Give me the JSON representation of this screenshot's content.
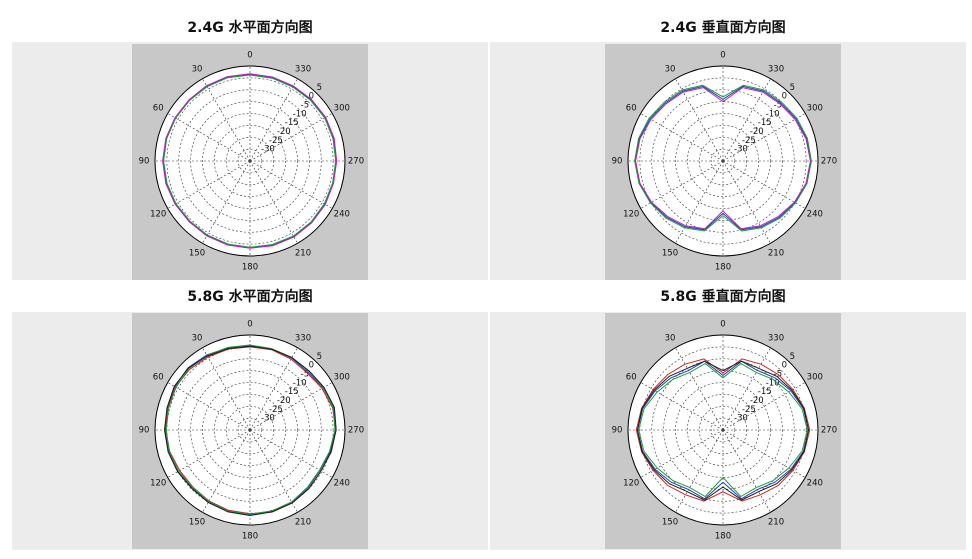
{
  "chart_data": [
    {
      "type": "polar",
      "title": "2.4G 水平面方向图",
      "x": [
        0,
        15,
        30,
        45,
        60,
        75,
        90,
        105,
        120,
        135,
        150,
        165,
        180,
        195,
        210,
        225,
        240,
        255,
        270,
        285,
        300,
        315,
        330,
        345
      ],
      "xticks": [
        0,
        30,
        60,
        90,
        120,
        150,
        180,
        210,
        240,
        270,
        300,
        330
      ],
      "ylim": [
        -35,
        5
      ],
      "yticks": [
        5,
        0,
        -5,
        -10,
        -15,
        -20,
        -25,
        -30
      ],
      "series": [
        {
          "color": "#1f3fbf",
          "values": [
            1.5,
            1.6,
            1.4,
            1.2,
            1.3,
            1.5,
            1.6,
            1.5,
            1.2,
            1.0,
            1.2,
            1.4,
            1.5,
            1.7,
            1.8,
            1.6,
            1.4,
            1.2,
            1.3,
            1.5,
            1.6,
            1.4,
            1.3,
            1.4
          ]
        },
        {
          "color": "#1a9e3a",
          "values": [
            1.2,
            1.3,
            1.1,
            1.0,
            1.1,
            1.3,
            1.4,
            1.2,
            1.0,
            0.8,
            1.0,
            1.2,
            1.3,
            1.4,
            1.5,
            1.3,
            1.1,
            1.0,
            1.1,
            1.2,
            1.3,
            1.1,
            1.0,
            1.1
          ]
        },
        {
          "color": "#c020c0",
          "values": [
            1.7,
            1.8,
            1.6,
            1.4,
            1.5,
            1.7,
            1.8,
            1.7,
            1.4,
            1.2,
            1.4,
            1.6,
            1.7,
            1.9,
            2.0,
            1.8,
            1.6,
            1.4,
            1.5,
            1.7,
            1.8,
            1.6,
            1.5,
            1.6
          ]
        }
      ]
    },
    {
      "type": "polar",
      "title": "2.4G 垂直面方向图",
      "x": [
        0,
        15,
        30,
        45,
        60,
        75,
        90,
        105,
        120,
        135,
        150,
        165,
        180,
        195,
        210,
        225,
        240,
        255,
        270,
        285,
        300,
        315,
        330,
        345
      ],
      "xticks": [
        0,
        30,
        60,
        90,
        120,
        150,
        180,
        210,
        240,
        270,
        300,
        330
      ],
      "ylim": [
        -35,
        5
      ],
      "yticks": [
        5,
        0,
        -5,
        -10,
        -15,
        -20,
        -25,
        -30
      ],
      "series": [
        {
          "color": "#1f3fbf",
          "values": [
            -9,
            -2.5,
            -1,
            -0.5,
            0.5,
            1.5,
            2,
            1.5,
            0,
            -1.5,
            -3,
            -5,
            -13,
            -5,
            -3,
            -1.5,
            0,
            1.5,
            2,
            1.5,
            0.5,
            -0.5,
            -1,
            -2.5
          ]
        },
        {
          "color": "#1a9e3a",
          "values": [
            -8,
            -2,
            -0.5,
            0,
            1,
            1.8,
            2.2,
            1.6,
            0.3,
            -1,
            -2.5,
            -4.5,
            -12,
            -4.5,
            -2.5,
            -1,
            0.3,
            1.6,
            2.2,
            1.8,
            1,
            0,
            -0.5,
            -2
          ]
        },
        {
          "color": "#c020c0",
          "values": [
            -10,
            -3,
            -1.5,
            -1,
            0,
            1.2,
            1.8,
            1.2,
            -0.3,
            -2,
            -3.5,
            -5.5,
            -14,
            -5.5,
            -3.5,
            -2,
            -0.3,
            1.2,
            1.8,
            1.2,
            0,
            -1,
            -1.5,
            -3
          ]
        }
      ]
    },
    {
      "type": "polar",
      "title": "5.8G 水平面方向图",
      "x": [
        0,
        15,
        30,
        45,
        60,
        75,
        90,
        105,
        120,
        135,
        150,
        165,
        180,
        195,
        210,
        225,
        240,
        255,
        270,
        285,
        300,
        315,
        330,
        345
      ],
      "xticks": [
        0,
        30,
        60,
        90,
        120,
        150,
        180,
        210,
        240,
        270,
        300,
        330
      ],
      "ylim": [
        -35,
        5
      ],
      "yticks": [
        5,
        0,
        -5,
        -10,
        -15,
        -20,
        -25,
        -30
      ],
      "series": [
        {
          "color": "#1f3fbf",
          "values": [
            0.5,
            0.8,
            1.5,
            2,
            1.5,
            1,
            0.8,
            0.5,
            0,
            -0.5,
            0,
            0.5,
            0.8,
            0.5,
            0.3,
            -0.5,
            -1,
            0,
            1,
            1.5,
            0.5,
            -0.5,
            0,
            0.3
          ]
        },
        {
          "color": "#d02020",
          "values": [
            0,
            0.3,
            0.5,
            1,
            1.2,
            0.8,
            0.5,
            0,
            -0.8,
            -1,
            -0.5,
            0,
            0.3,
            0.8,
            0.5,
            0,
            -0.5,
            0.5,
            1.2,
            1,
            0,
            -1,
            -0.5,
            0
          ]
        },
        {
          "color": "#1a9e3a",
          "values": [
            0.8,
            1,
            1.2,
            1.5,
            1,
            0.5,
            0.3,
            0.2,
            -0.3,
            -0.8,
            -0.3,
            0.3,
            0.5,
            0.3,
            0,
            -0.8,
            -1.2,
            -0.3,
            0.8,
            1.2,
            0.8,
            0,
            0.3,
            0.5
          ]
        },
        {
          "color": "#202020",
          "values": [
            0.3,
            0.5,
            1,
            1.8,
            1.8,
            1.2,
            1,
            0.7,
            0.2,
            -0.3,
            0.2,
            0.7,
            1,
            0.7,
            0.5,
            0,
            -0.5,
            0.3,
            1.3,
            1.8,
            1,
            0.2,
            0.2,
            0.2
          ]
        }
      ]
    },
    {
      "type": "polar",
      "title": "5.8G 垂直面方向图",
      "x": [
        0,
        15,
        30,
        45,
        60,
        75,
        90,
        105,
        120,
        135,
        150,
        165,
        180,
        195,
        210,
        225,
        240,
        255,
        270,
        285,
        300,
        315,
        330,
        345
      ],
      "xticks": [
        0,
        30,
        60,
        90,
        120,
        150,
        180,
        210,
        240,
        270,
        300,
        330
      ],
      "ylim": [
        -35,
        5
      ],
      "yticks": [
        5,
        0,
        -5,
        -10,
        -15,
        -20,
        -25,
        -30
      ],
      "series": [
        {
          "color": "#1f3fbf",
          "values": [
            -12,
            -5,
            -6,
            -4,
            -2,
            0,
            1,
            0,
            -2,
            -4,
            -6,
            -5,
            -13,
            -5,
            -6,
            -4,
            -2,
            0,
            1,
            0,
            -2,
            -4,
            -6,
            -5
          ]
        },
        {
          "color": "#d02020",
          "values": [
            -11,
            -4,
            -3,
            -2,
            -1,
            0.5,
            1.5,
            0.5,
            -1,
            -2,
            -3.5,
            -4,
            -9,
            -4,
            -3.5,
            -2,
            -1,
            0.5,
            1.5,
            0.5,
            -1,
            -2,
            -3,
            -4
          ]
        },
        {
          "color": "#1a9e3a",
          "values": [
            -13,
            -6,
            -7,
            -5,
            -3,
            -0.5,
            0.5,
            -0.5,
            -3,
            -5,
            -7,
            -6,
            -15,
            -6,
            -7,
            -5,
            -3,
            -0.5,
            0.5,
            -0.5,
            -3,
            -5,
            -7,
            -6
          ]
        },
        {
          "color": "#202020",
          "values": [
            -10,
            -5,
            -5,
            -3,
            -1.5,
            0.3,
            1,
            0.3,
            -1.5,
            -3,
            -5,
            -4.5,
            -11,
            -4.5,
            -5,
            -3,
            -1.5,
            0.3,
            1,
            0.3,
            -1.5,
            -3,
            -5,
            -5
          ]
        }
      ]
    }
  ]
}
